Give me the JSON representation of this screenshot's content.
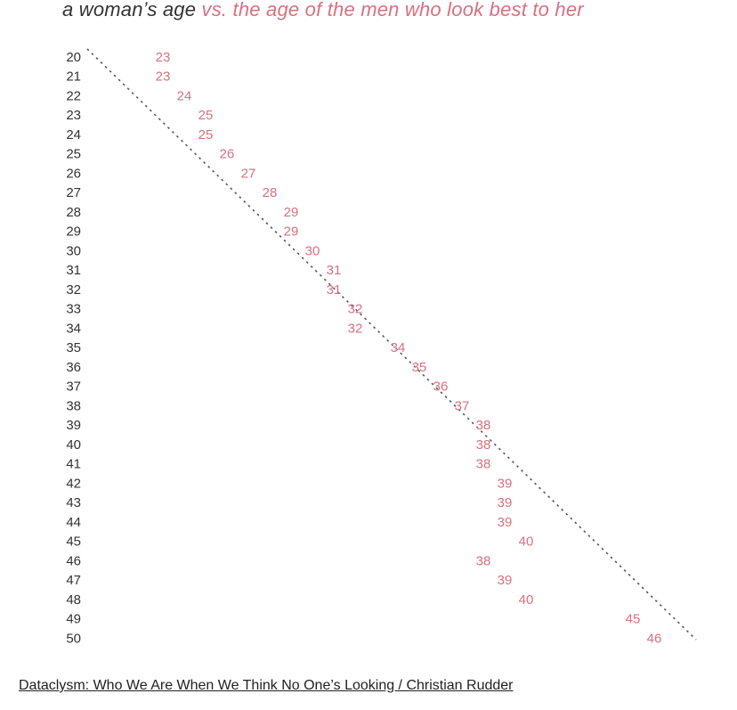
{
  "title": {
    "main": "a woman’s age",
    "accent": " vs. the age of the men who look best to her"
  },
  "source": {
    "label": "Dataclysm: Who We Are When We Think No One’s Looking / Christian Rudder"
  },
  "colors": {
    "accent": "#d9707f",
    "axis_text": "#333333",
    "diagonal": "#555555"
  },
  "chart_data": {
    "type": "scatter",
    "title": "a woman’s age vs. the age of the men who look best to her",
    "xlabel": "",
    "ylabel": "",
    "y_axis": "a woman’s age",
    "x_axis": "the age of the men who look best to her",
    "women_ages": [
      20,
      21,
      22,
      23,
      24,
      25,
      26,
      27,
      28,
      29,
      30,
      31,
      32,
      33,
      34,
      35,
      36,
      37,
      38,
      39,
      40,
      41,
      42,
      43,
      44,
      45,
      46,
      47,
      48,
      49,
      50
    ],
    "preferred_men_ages": [
      23,
      23,
      24,
      25,
      25,
      26,
      27,
      28,
      29,
      29,
      30,
      31,
      31,
      32,
      32,
      34,
      35,
      36,
      37,
      38,
      38,
      38,
      39,
      39,
      39,
      40,
      38,
      39,
      40,
      45,
      46
    ],
    "reference_line": "equal age (dotted diagonal)",
    "ylim": [
      20,
      50
    ],
    "grid": false,
    "legend": "none"
  }
}
